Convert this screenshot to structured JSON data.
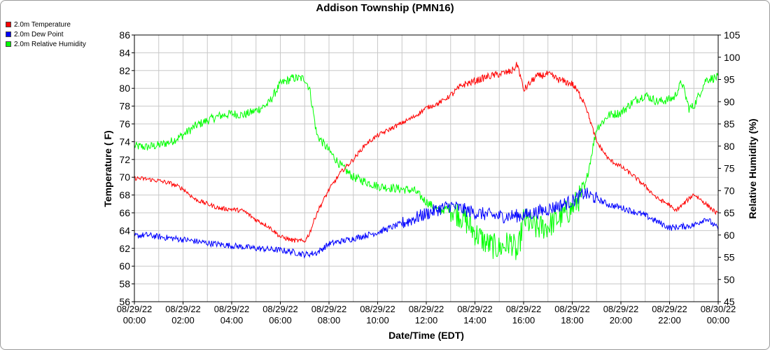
{
  "chart_data": {
    "type": "line",
    "title": "Addison Township (PMN16)",
    "xlabel": "Date/Time (EDT)",
    "ylabel": "Temperature ( F)",
    "y2label": "Relative Humidity (%)",
    "ylim": [
      56,
      86
    ],
    "yticks": [
      56,
      58,
      60,
      62,
      64,
      66,
      68,
      70,
      72,
      74,
      76,
      78,
      80,
      82,
      84,
      86
    ],
    "y2lim": [
      45,
      105
    ],
    "y2ticks": [
      45,
      50,
      55,
      60,
      65,
      70,
      75,
      80,
      85,
      90,
      95,
      100,
      105
    ],
    "xlim": [
      0,
      24
    ],
    "xtick_hours": [
      0,
      2,
      4,
      6,
      8,
      10,
      12,
      14,
      16,
      18,
      20,
      22,
      24
    ],
    "xtick_labels": [
      [
        "08/29/22",
        "00:00"
      ],
      [
        "08/29/22",
        "02:00"
      ],
      [
        "08/29/22",
        "04:00"
      ],
      [
        "08/29/22",
        "06:00"
      ],
      [
        "08/29/22",
        "08:00"
      ],
      [
        "08/29/22",
        "10:00"
      ],
      [
        "08/29/22",
        "12:00"
      ],
      [
        "08/29/22",
        "14:00"
      ],
      [
        "08/29/22",
        "16:00"
      ],
      [
        "08/29/22",
        "18:00"
      ],
      [
        "08/29/22",
        "20:00"
      ],
      [
        "08/29/22",
        "22:00"
      ],
      [
        "08/30/22",
        "00:00"
      ]
    ],
    "grid": true,
    "legend_position": "top-left",
    "series": [
      {
        "name": "2.0m Temperature",
        "color": "#ff0000",
        "axis": "left",
        "noise": 0.25,
        "x": [
          0,
          0.5,
          1,
          1.5,
          2,
          2.5,
          3,
          3.5,
          4,
          4.5,
          5,
          5.5,
          6,
          6.5,
          7,
          7.2,
          7.5,
          8,
          8.5,
          9,
          9.5,
          10,
          10.5,
          11,
          11.5,
          12,
          12.5,
          13,
          13.5,
          14,
          14.5,
          15,
          15.5,
          15.75,
          16,
          16.5,
          17,
          17.5,
          18,
          18.5,
          19,
          19.5,
          20,
          20.5,
          21,
          21.5,
          22,
          22.2,
          22.5,
          23,
          23.5,
          24
        ],
        "y": [
          69.9,
          69.8,
          69.6,
          69.3,
          68.7,
          67.5,
          67.0,
          66.5,
          66.4,
          66.2,
          65.2,
          64.5,
          63.3,
          62.9,
          62.8,
          63.7,
          66.0,
          68.6,
          70.6,
          72.0,
          73.7,
          74.7,
          75.4,
          76.1,
          76.8,
          77.8,
          78.3,
          79.2,
          80.4,
          80.8,
          81.3,
          81.6,
          81.9,
          82.7,
          79.8,
          81.3,
          81.6,
          80.9,
          80.5,
          78.5,
          74.0,
          72.0,
          71.2,
          70.2,
          69.0,
          67.6,
          66.9,
          66.2,
          66.8,
          68.1,
          67.0,
          65.8
        ]
      },
      {
        "name": "2.0m Dew Point",
        "color": "#0000ff",
        "axis": "left",
        "noise": 0.35,
        "x": [
          0,
          0.5,
          1,
          2,
          3,
          4,
          5,
          6,
          6.5,
          7,
          7.5,
          8,
          9,
          10,
          11,
          12,
          12.5,
          13,
          14,
          15,
          16,
          17,
          18,
          18.5,
          19,
          19.5,
          20,
          21,
          22,
          23,
          23.5,
          24
        ],
        "y": [
          63.4,
          63.5,
          63.3,
          63.0,
          62.6,
          62.3,
          62.0,
          61.8,
          61.6,
          61.3,
          61.5,
          62.5,
          63.1,
          63.8,
          64.8,
          65.9,
          66.4,
          66.8,
          66.0,
          65.6,
          65.7,
          66.4,
          67.3,
          68.2,
          67.6,
          66.9,
          66.6,
          65.7,
          64.3,
          64.6,
          65.4,
          64.2
        ]
      },
      {
        "name": "2.0m Relative Humidity",
        "color": "#00ff00",
        "axis": "right",
        "noise": 1.0,
        "x": [
          0,
          0.5,
          1,
          1.5,
          2,
          2.5,
          3,
          3.5,
          4,
          4.5,
          5,
          5.5,
          6,
          6.5,
          7,
          7.2,
          7.5,
          8,
          8.5,
          9,
          10,
          11,
          11.5,
          12,
          12.5,
          13,
          13.5,
          14,
          14.5,
          15,
          15.5,
          15.75,
          16,
          16.5,
          17,
          17.5,
          18,
          18.5,
          19,
          19.5,
          20,
          20.5,
          21,
          21.5,
          22,
          22.2,
          22.5,
          22.8,
          23,
          23.5,
          24
        ],
        "y": [
          80.0,
          79.8,
          80.2,
          81.0,
          82.5,
          84.5,
          85.8,
          86.8,
          87.3,
          87.0,
          88.0,
          89.5,
          94.0,
          95.3,
          95.2,
          93.0,
          82.5,
          79.0,
          75.5,
          73.0,
          71.0,
          70.3,
          70.0,
          67.5,
          65.5,
          66.0,
          64.0,
          60.5,
          58.0,
          57.0,
          58.5,
          55.5,
          63.5,
          61.5,
          62.0,
          64.0,
          66.0,
          70.0,
          84.0,
          87.0,
          87.5,
          90.0,
          91.5,
          90.0,
          90.5,
          91.0,
          94.5,
          88.5,
          89.0,
          95.0,
          95.5
        ]
      }
    ]
  }
}
